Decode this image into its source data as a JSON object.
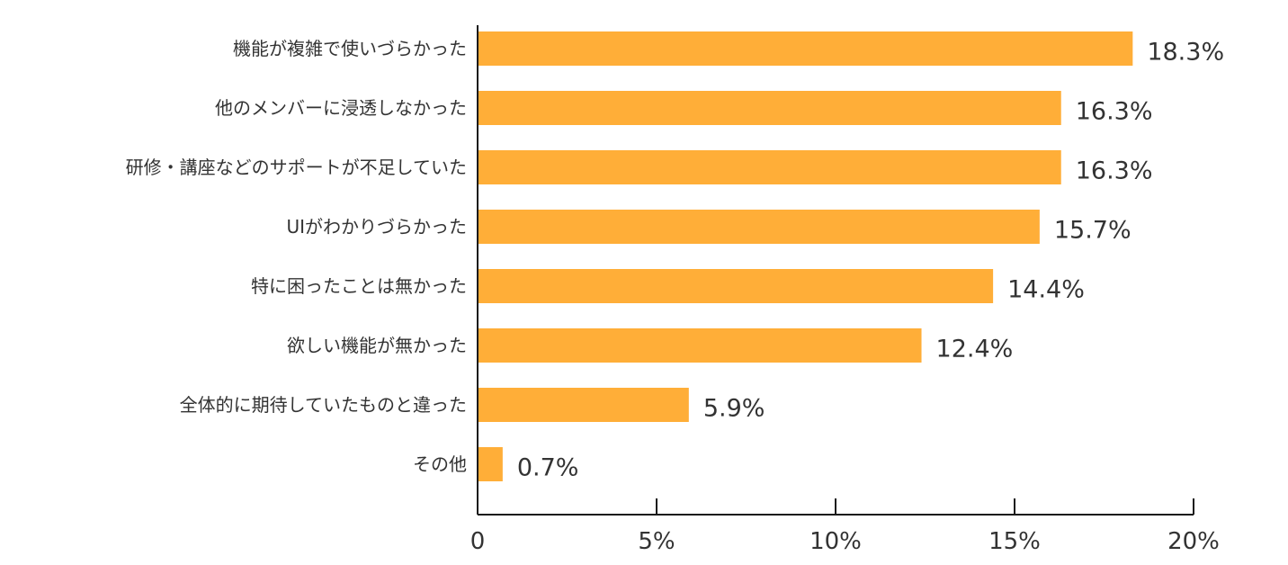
{
  "chart_data": {
    "type": "bar",
    "orientation": "horizontal",
    "categories": [
      "機能が複雑で使いづらかった",
      "他のメンバーに浸透しなかった",
      "研修・講座などのサポートが不足していた",
      "UIがわかりづらかった",
      "特に困ったことは無かった",
      "欲しい機能が無かった",
      "全体的に期待していたものと違った",
      "その他"
    ],
    "values": [
      18.3,
      16.3,
      16.3,
      15.7,
      14.4,
      12.4,
      5.9,
      0.7
    ],
    "value_labels": [
      "18.3%",
      "16.3%",
      "16.3%",
      "15.7%",
      "14.4%",
      "12.4%",
      "5.9%",
      "0.7%"
    ],
    "xlim": [
      0,
      20
    ],
    "x_ticks": [
      0,
      5,
      10,
      15,
      20
    ],
    "x_tick_labels": [
      "0",
      "5%",
      "10%",
      "15%",
      "20%"
    ],
    "title": "",
    "xlabel": "",
    "ylabel": "",
    "grid": false,
    "legend": "none",
    "bar_color": "#FFAE38"
  }
}
